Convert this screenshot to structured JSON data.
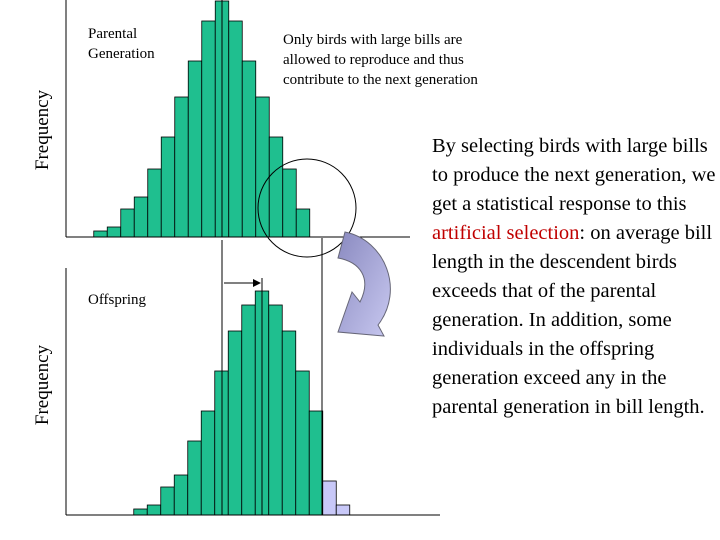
{
  "chart_data": [
    {
      "type": "bar",
      "ylabel": "Frequency",
      "label": "Parental Generation",
      "color": "#1fbf8f",
      "values": [
        3,
        5,
        14,
        20,
        34,
        50,
        70,
        88,
        108,
        118,
        108,
        88,
        70,
        50,
        34,
        14
      ]
    },
    {
      "type": "bar",
      "ylabel": "Frequency",
      "label": "Offspring",
      "colors": [
        "#1fbf8f",
        "#1fbf8f",
        "#1fbf8f",
        "#1fbf8f",
        "#1fbf8f",
        "#1fbf8f",
        "#1fbf8f",
        "#1fbf8f",
        "#1fbf8f",
        "#1fbf8f",
        "#1fbf8f",
        "#1fbf8f",
        "#1fbf8f",
        "#1fbf8f",
        "#c8c8f8",
        "#c8c8f8"
      ],
      "values": [
        3,
        5,
        14,
        20,
        37,
        52,
        72,
        92,
        105,
        112,
        105,
        92,
        72,
        52,
        17,
        5
      ]
    }
  ],
  "annotation": "Only birds with large bills are allowed to reproduce and thus contribute to the next generation",
  "explanation": {
    "highlight_color": "#c00000",
    "parts": [
      "By selecting birds with large bills to produce the next generation, we get a statistical response to this ",
      "artificial selection",
      ": on average bill length in the descendent birds exceeds that of the parental generation. In addition, some individuals in the offspring generation exceed any in the parental generation in bill length."
    ]
  }
}
